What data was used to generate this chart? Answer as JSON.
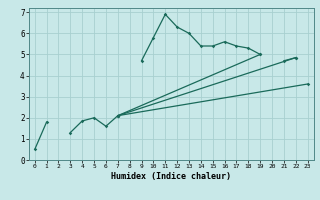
{
  "xlabel": "Humidex (Indice chaleur)",
  "bg_color": "#c8e8e8",
  "grid_color": "#a8d0d0",
  "line_color": "#1a6a5a",
  "xlim": [
    -0.5,
    23.5
  ],
  "ylim": [
    0,
    7.2
  ],
  "xticks": [
    0,
    1,
    2,
    3,
    4,
    5,
    6,
    7,
    8,
    9,
    10,
    11,
    12,
    13,
    14,
    15,
    16,
    17,
    18,
    19,
    20,
    21,
    22,
    23
  ],
  "yticks": [
    0,
    1,
    2,
    3,
    4,
    5,
    6,
    7
  ],
  "curve_main": {
    "segments": [
      {
        "x": [
          0,
          1
        ],
        "y": [
          0.5,
          1.8
        ]
      },
      {
        "x": [
          3,
          4,
          5,
          6,
          7
        ],
        "y": [
          1.3,
          1.85,
          2.0,
          1.6,
          2.1
        ]
      },
      {
        "x": [
          9,
          10,
          11,
          12,
          13,
          14,
          15,
          16,
          17,
          18,
          19
        ],
        "y": [
          4.7,
          5.8,
          6.9,
          6.3,
          6.0,
          5.4,
          5.4,
          5.6,
          5.4,
          5.3,
          5.0
        ]
      },
      {
        "x": [
          21,
          22
        ],
        "y": [
          4.7,
          4.85
        ]
      }
    ]
  },
  "curve_lines": [
    {
      "x": [
        7,
        23
      ],
      "y": [
        2.1,
        3.6
      ]
    },
    {
      "x": [
        7,
        22
      ],
      "y": [
        2.1,
        4.85
      ]
    },
    {
      "x": [
        7,
        19
      ],
      "y": [
        2.1,
        5.0
      ]
    }
  ]
}
